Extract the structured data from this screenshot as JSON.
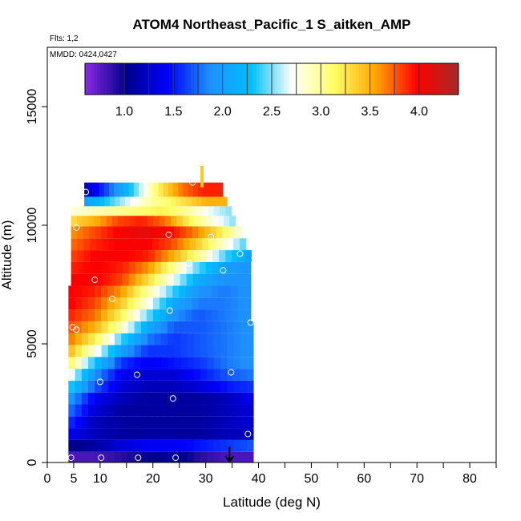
{
  "chart_data": {
    "type": "heatmap",
    "title": "ATOM4 Northeast_Pacific_1 S_aitken_AMP",
    "flights_label": "Flts: 1,2",
    "dates_label": "MMDD: 0424,0427",
    "xlabel": "Latitude (deg N)",
    "ylabel": "Altitude (m)",
    "xlim": [
      0,
      85
    ],
    "ylim": [
      0,
      17500
    ],
    "x_ticks": [
      0,
      5,
      10,
      20,
      30,
      40,
      50,
      60,
      70,
      80
    ],
    "x_minor_ticks": [
      15,
      25,
      35,
      45,
      55,
      65,
      75,
      85
    ],
    "y_ticks": [
      0,
      5000,
      10000,
      15000
    ],
    "colorbar": {
      "range": [
        0.6,
        4.4
      ],
      "ticks": [
        1.0,
        1.5,
        2.0,
        2.5,
        3.0,
        3.5,
        4.0
      ],
      "tick_labels": [
        "1.0",
        "1.5",
        "2.0",
        "2.5",
        "3.0",
        "3.5",
        "4.0"
      ],
      "colors": [
        "#8a2be2",
        "#00008b",
        "#0000ff",
        "#1e90ff",
        "#00bfff",
        "#ffffff",
        "#ffff66",
        "#ffa500",
        "#ff0000",
        "#a52a2a"
      ]
    },
    "lat_bounds": [
      4,
      39
    ],
    "altitude_levels": [
      {
        "alt": 200,
        "values": [
          0.8,
          0.8,
          0.9,
          1.0,
          1.1,
          0.9,
          0.8,
          0.8
        ]
      },
      {
        "alt": 700,
        "values": [
          1.0,
          1.1,
          1.3,
          1.4,
          1.4,
          1.5,
          1.6,
          1.7
        ]
      },
      {
        "alt": 1200,
        "values": [
          1.4,
          1.2,
          1.1,
          1.1,
          1.1,
          1.1,
          1.2,
          1.2
        ]
      },
      {
        "alt": 1700,
        "values": [
          1.6,
          1.2,
          1.1,
          1.1,
          1.1,
          1.1,
          1.2,
          1.3
        ]
      },
      {
        "alt": 2200,
        "values": [
          1.8,
          1.3,
          1.1,
          1.1,
          1.1,
          1.1,
          1.2,
          1.3
        ]
      },
      {
        "alt": 2700,
        "values": [
          2.0,
          1.4,
          1.2,
          1.1,
          1.1,
          1.1,
          1.2,
          1.4
        ]
      },
      {
        "alt": 3200,
        "values": [
          2.4,
          1.7,
          1.3,
          1.2,
          1.2,
          1.3,
          1.5,
          1.6
        ]
      },
      {
        "alt": 3700,
        "values": [
          2.8,
          1.9,
          1.4,
          1.3,
          1.3,
          1.5,
          1.7,
          1.8
        ]
      },
      {
        "alt": 4200,
        "values": [
          3.2,
          2.3,
          1.6,
          1.4,
          1.5,
          1.6,
          1.8,
          1.9
        ]
      },
      {
        "alt": 4700,
        "values": [
          3.5,
          2.8,
          2.0,
          1.6,
          1.6,
          1.7,
          1.8,
          1.9
        ]
      },
      {
        "alt": 5200,
        "values": [
          3.7,
          3.2,
          2.4,
          1.8,
          1.6,
          1.7,
          1.8,
          1.9
        ]
      },
      {
        "alt": 5700,
        "values": [
          3.8,
          3.5,
          2.9,
          2.1,
          1.7,
          1.7,
          1.8,
          1.9
        ]
      },
      {
        "alt": 6200,
        "values": [
          3.9,
          3.7,
          3.2,
          2.5,
          1.9,
          1.7,
          1.8,
          1.9
        ]
      },
      {
        "alt": 6700,
        "values": [
          4.0,
          3.8,
          3.4,
          2.8,
          2.1,
          1.8,
          1.8,
          1.9
        ]
      },
      {
        "alt": 7200,
        "values": [
          4.0,
          3.9,
          3.6,
          3.0,
          2.4,
          1.9,
          1.8,
          1.9
        ]
      },
      {
        "alt": 7700,
        "values": [
          4.0,
          4.0,
          3.8,
          3.3,
          2.7,
          2.1,
          1.9,
          1.9
        ]
      },
      {
        "alt": 8200,
        "values": [
          3.9,
          4.0,
          3.9,
          3.6,
          3.0,
          2.4,
          2.0,
          1.9
        ]
      },
      {
        "alt": 8700,
        "values": [
          3.8,
          4.0,
          4.0,
          3.9,
          3.5,
          3.0,
          2.4,
          2.0
        ]
      },
      {
        "alt": 9200,
        "values": [
          3.7,
          3.9,
          4.0,
          4.0,
          3.8,
          3.4,
          2.9,
          2.4
        ]
      },
      {
        "alt": 9700,
        "values": [
          3.6,
          3.8,
          4.0,
          4.1,
          4.0,
          3.7,
          3.3,
          2.8
        ]
      },
      {
        "alt": 10200,
        "values": [
          3.3,
          3.5,
          3.8,
          3.9,
          3.7,
          3.2,
          2.8,
          2.5
        ]
      },
      {
        "alt": 10600,
        "values": [
          2.8,
          2.9,
          3.0,
          3.1,
          3.2,
          3.0,
          2.7,
          2.5
        ]
      },
      {
        "alt": 11000,
        "values": [
          2.0,
          2.3,
          2.6,
          2.9,
          3.1,
          3.3,
          3.5,
          3.5
        ]
      },
      {
        "alt": 11400,
        "values": [
          1.2,
          1.6,
          2.1,
          2.7,
          3.3,
          3.7,
          3.9,
          3.9
        ]
      }
    ],
    "sample_points": [
      {
        "lat": 4.5,
        "alt": 200
      },
      {
        "lat": 10.2,
        "alt": 200
      },
      {
        "lat": 17.2,
        "alt": 200
      },
      {
        "lat": 24.3,
        "alt": 200
      },
      {
        "lat": 38.0,
        "alt": 1200
      },
      {
        "lat": 10.0,
        "alt": 3400
      },
      {
        "lat": 17.0,
        "alt": 3700
      },
      {
        "lat": 23.8,
        "alt": 2700
      },
      {
        "lat": 34.8,
        "alt": 3800
      },
      {
        "lat": 4.8,
        "alt": 5700
      },
      {
        "lat": 5.5,
        "alt": 5600
      },
      {
        "lat": 38.5,
        "alt": 5900
      },
      {
        "lat": 23.2,
        "alt": 6400
      },
      {
        "lat": 12.3,
        "alt": 6900
      },
      {
        "lat": 9.0,
        "alt": 7700
      },
      {
        "lat": 26.8,
        "alt": 8400
      },
      {
        "lat": 33.3,
        "alt": 8100
      },
      {
        "lat": 36.5,
        "alt": 8800
      },
      {
        "lat": 23.0,
        "alt": 9600
      },
      {
        "lat": 31.0,
        "alt": 9500
      },
      {
        "lat": 5.5,
        "alt": 9900
      },
      {
        "lat": 7.3,
        "alt": 11400
      },
      {
        "lat": 27.5,
        "alt": 11800
      }
    ],
    "marker": {
      "lat": 34.5,
      "alt": 0
    }
  }
}
